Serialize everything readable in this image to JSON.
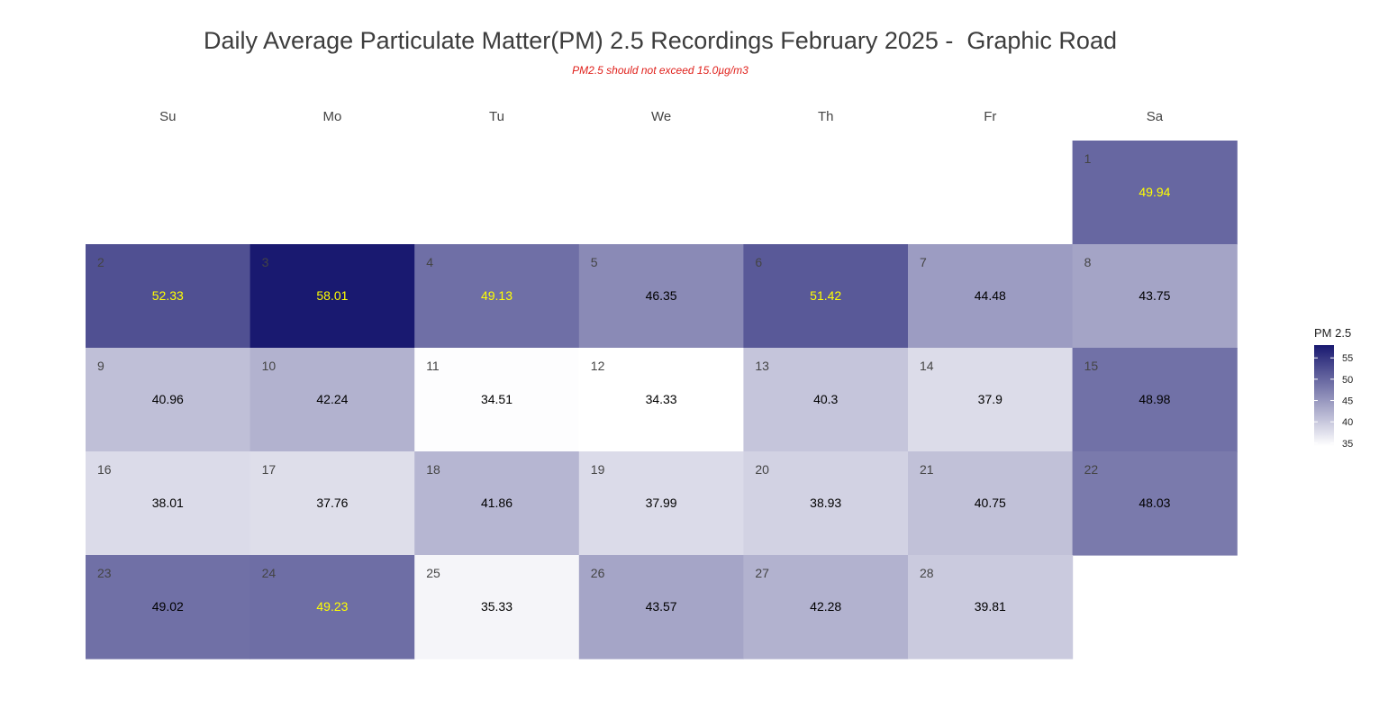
{
  "chart_data": {
    "type": "heatmap",
    "title": "Daily Average Particulate Matter(PM) 2.5 Recordings February 2025 -  Graphic Road",
    "subtitle": "PM2.5 should not exceed 15.0µg/m3",
    "weekdays": [
      "Su",
      "Mo",
      "Tu",
      "We",
      "Th",
      "Fr",
      "Sa"
    ],
    "days": [
      {
        "day": 1,
        "weekday": 6,
        "week": 0,
        "value": 49.94
      },
      {
        "day": 2,
        "weekday": 0,
        "week": 1,
        "value": 52.33
      },
      {
        "day": 3,
        "weekday": 1,
        "week": 1,
        "value": 58.01
      },
      {
        "day": 4,
        "weekday": 2,
        "week": 1,
        "value": 49.13
      },
      {
        "day": 5,
        "weekday": 3,
        "week": 1,
        "value": 46.35
      },
      {
        "day": 6,
        "weekday": 4,
        "week": 1,
        "value": 51.42
      },
      {
        "day": 7,
        "weekday": 5,
        "week": 1,
        "value": 44.48
      },
      {
        "day": 8,
        "weekday": 6,
        "week": 1,
        "value": 43.75
      },
      {
        "day": 9,
        "weekday": 0,
        "week": 2,
        "value": 40.96
      },
      {
        "day": 10,
        "weekday": 1,
        "week": 2,
        "value": 42.24
      },
      {
        "day": 11,
        "weekday": 2,
        "week": 2,
        "value": 34.51
      },
      {
        "day": 12,
        "weekday": 3,
        "week": 2,
        "value": 34.33
      },
      {
        "day": 13,
        "weekday": 4,
        "week": 2,
        "value": 40.3
      },
      {
        "day": 14,
        "weekday": 5,
        "week": 2,
        "value": 37.9
      },
      {
        "day": 15,
        "weekday": 6,
        "week": 2,
        "value": 48.98
      },
      {
        "day": 16,
        "weekday": 0,
        "week": 3,
        "value": 38.01
      },
      {
        "day": 17,
        "weekday": 1,
        "week": 3,
        "value": 37.76
      },
      {
        "day": 18,
        "weekday": 2,
        "week": 3,
        "value": 41.86
      },
      {
        "day": 19,
        "weekday": 3,
        "week": 3,
        "value": 37.99
      },
      {
        "day": 20,
        "weekday": 4,
        "week": 3,
        "value": 38.93
      },
      {
        "day": 21,
        "weekday": 5,
        "week": 3,
        "value": 40.75
      },
      {
        "day": 22,
        "weekday": 6,
        "week": 3,
        "value": 48.03
      },
      {
        "day": 23,
        "weekday": 0,
        "week": 4,
        "value": 49.02
      },
      {
        "day": 24,
        "weekday": 1,
        "week": 4,
        "value": 49.23
      },
      {
        "day": 25,
        "weekday": 2,
        "week": 4,
        "value": 35.33
      },
      {
        "day": 26,
        "weekday": 3,
        "week": 4,
        "value": 43.57
      },
      {
        "day": 27,
        "weekday": 4,
        "week": 4,
        "value": 42.28
      },
      {
        "day": 28,
        "weekday": 5,
        "week": 4,
        "value": 39.81
      }
    ],
    "highlighted_value_days": [
      1,
      2,
      3,
      4,
      6,
      24
    ],
    "colors": {
      "low": "#ffffff",
      "high": "#191970",
      "highlight_text": "#ffff00",
      "normal_text": "#000000",
      "day_number_text": "#444444"
    },
    "value_range": [
      34.33,
      58.01
    ],
    "legend": {
      "title": "PM 2.5",
      "ticks": [
        35,
        40,
        45,
        50,
        55
      ],
      "position": "right"
    }
  }
}
